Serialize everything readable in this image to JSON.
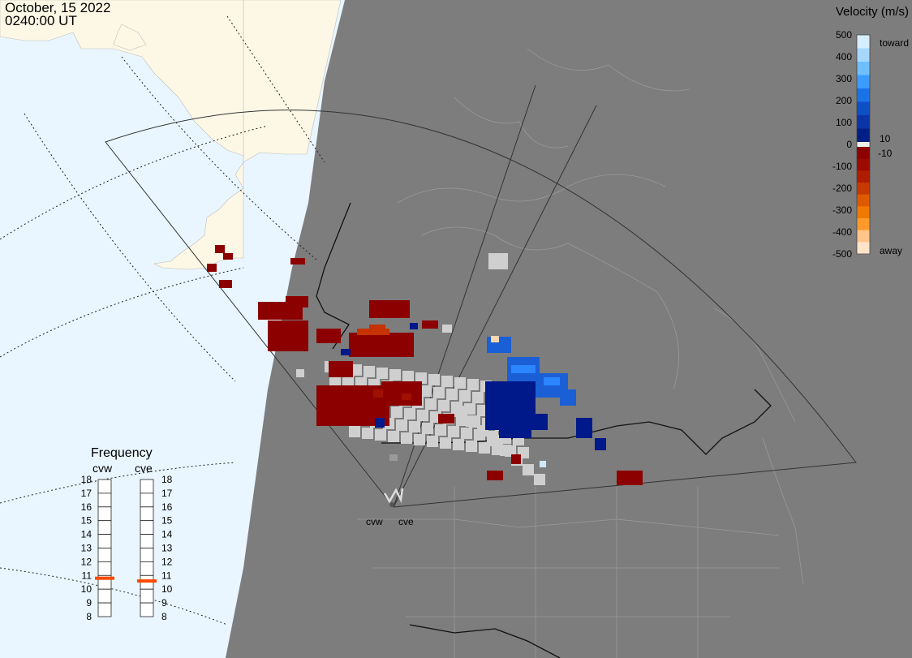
{
  "header": {
    "date": "October, 15 2022",
    "time": "0240:00 UT"
  },
  "legend": {
    "title": "Velocity (m/s)",
    "ticks": [
      "500",
      "400",
      "300",
      "200",
      "100",
      "0",
      "-100",
      "-200",
      "-300",
      "-400",
      "-500"
    ],
    "small_pos": "10",
    "small_neg": "-10",
    "toward_label": "toward",
    "away_label": "away",
    "colors": [
      "#cde9ff",
      "#9fd4ff",
      "#5cb5ff",
      "#2590ff",
      "#1566dd",
      "#0a44b8",
      "#002a96",
      "#001c7a",
      "#fff",
      "#8c0000",
      "#990000",
      "#a01000",
      "#c83200",
      "#e55400",
      "#f57a00",
      "#ff9a20",
      "#ffc890",
      "#ffe2c4"
    ]
  },
  "frequency": {
    "title": "Frequency",
    "radars": [
      {
        "name": "cvw",
        "value_mhz": 10.8
      },
      {
        "name": "cve",
        "value_mhz": 10.6
      }
    ],
    "scale_labels": [
      "18",
      "17",
      "16",
      "15",
      "14",
      "13",
      "12",
      "11",
      "10",
      "9",
      "8"
    ],
    "marker_color": "#ff4a00"
  },
  "sites": [
    {
      "name": "cvw"
    },
    {
      "name": "cve"
    }
  ],
  "map_colors": {
    "ocean": "#e9f6ff",
    "land_day": "#fdf8e6",
    "night": "#7d7d7d",
    "borders": "#9a9a9a",
    "fov": "#333333"
  }
}
